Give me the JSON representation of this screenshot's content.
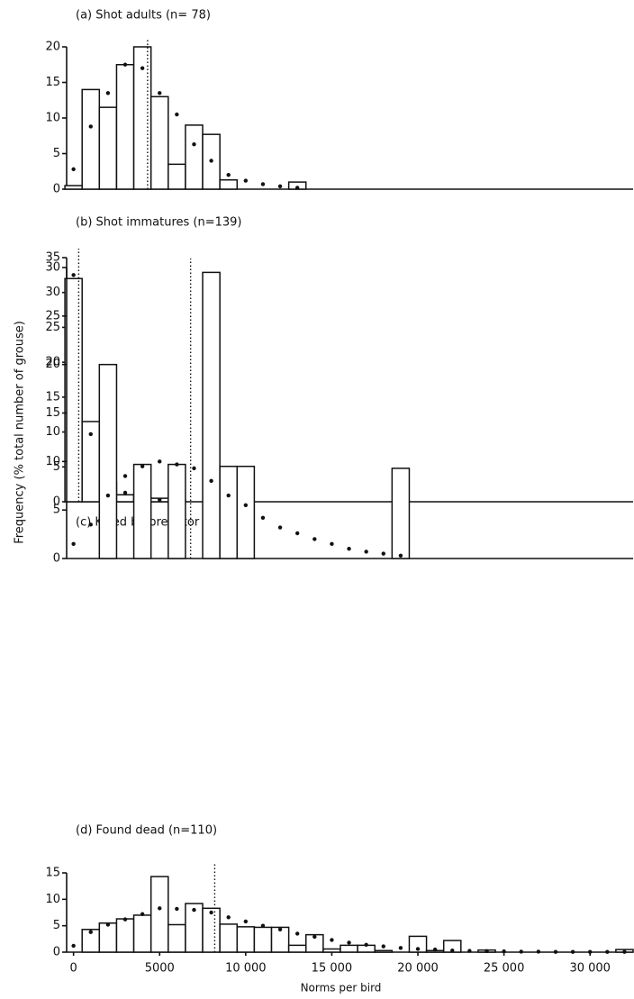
{
  "ylabel": "Frequency (% total number of grouse)",
  "chart_data": [
    {
      "type": "histogram",
      "title": "(a) Shot adults (n= 78)",
      "bins": [
        -500,
        500,
        1500,
        2500,
        3500,
        4500,
        5500,
        6500,
        7500,
        8500,
        9500,
        10500,
        11500,
        12500,
        13500
      ],
      "values": [
        0.5,
        14,
        11.5,
        17.5,
        20,
        13,
        3.5,
        9,
        7.7,
        1.3,
        0,
        0,
        0,
        1
      ],
      "fit": {
        "x": [
          0,
          1000,
          2000,
          3000,
          4000,
          5000,
          6000,
          7000,
          8000,
          9000,
          10000,
          11000,
          12000,
          13000
        ],
        "values": [
          2.8,
          8.8,
          13.5,
          17.5,
          17,
          13.5,
          10.5,
          6.3,
          4,
          2,
          1.2,
          0.7,
          0.4,
          0.2
        ]
      },
      "mean": 4300,
      "xlim": [
        -400,
        32500
      ],
      "ylim": [
        0,
        20
      ],
      "yticks": [
        0,
        5,
        10,
        15,
        20
      ]
    },
    {
      "type": "histogram",
      "title": "(b) Shot immatures (n=139)",
      "bins": [
        -500,
        500,
        1500,
        2500,
        3500,
        4500,
        5500,
        6500
      ],
      "values": [
        32,
        11.5,
        2.8,
        1,
        0.8,
        0.5,
        0.2
      ],
      "fit": {
        "x": [
          0,
          1000,
          2000,
          3000,
          4000,
          5000,
          6000
        ],
        "values": [
          32.5,
          9.7,
          3.7,
          1.3,
          0.6,
          0.3,
          0.1
        ]
      },
      "mean": 300,
      "xlim": [
        -400,
        32500
      ],
      "ylim": [
        0,
        35
      ],
      "yticks": [
        0,
        5,
        10,
        15,
        20,
        25,
        30,
        35
      ]
    },
    {
      "type": "histogram",
      "title": "(c) Killed by predator (n=10)",
      "bins": [
        -500,
        500,
        1500,
        2500,
        3500,
        4500,
        5500,
        6500,
        7500,
        8500,
        9500,
        10500,
        11500,
        12500,
        13500,
        14500,
        15500,
        16500,
        17500,
        18500,
        19500
      ],
      "values": [
        0,
        0,
        20,
        0,
        9.7,
        0,
        9.7,
        0,
        29.5,
        9.5,
        9.5,
        0,
        0,
        0,
        0,
        0,
        0,
        0,
        0,
        9.3
      ],
      "fit": {
        "x": [
          0,
          1000,
          2000,
          3000,
          4000,
          5000,
          6000,
          7000,
          8000,
          9000,
          10000,
          11000,
          12000,
          13000,
          14000,
          15000,
          16000,
          17000,
          18000,
          19000
        ],
        "values": [
          1.5,
          3.5,
          6.5,
          8.5,
          9.5,
          10,
          9.7,
          9.3,
          8,
          6.5,
          5.5,
          4.2,
          3.2,
          2.6,
          2,
          1.5,
          1,
          0.7,
          0.5,
          0.3
        ]
      },
      "mean": 6800,
      "xlim": [
        -400,
        32500
      ],
      "ylim": [
        0,
        30
      ],
      "yticks": [
        0,
        5,
        10,
        15,
        20,
        25,
        30
      ]
    },
    {
      "type": "histogram",
      "title": "(d) Found dead (n=110)",
      "bins": [
        -500,
        500,
        1500,
        2500,
        3500,
        4500,
        5500,
        6500,
        7500,
        8500,
        9500,
        10500,
        11500,
        12500,
        13500,
        14500,
        15500,
        16500,
        17500,
        18500,
        19500,
        20500,
        21500,
        22500,
        23500,
        24500,
        25500,
        26500,
        27500,
        28500,
        29500,
        30500,
        31500,
        32500
      ],
      "values": [
        0,
        4.3,
        5.5,
        6.3,
        7,
        14.3,
        5.2,
        9.2,
        8.3,
        5.3,
        4.8,
        4.7,
        4.7,
        1.3,
        3.3,
        0.6,
        1.3,
        1.3,
        0.3,
        0,
        3,
        0.3,
        2.2,
        0,
        0.4,
        0,
        0,
        0,
        0,
        0,
        0,
        0,
        0.5
      ],
      "fit": {
        "x": [
          0,
          1000,
          2000,
          3000,
          4000,
          5000,
          6000,
          7000,
          8000,
          9000,
          10000,
          11000,
          12000,
          13000,
          14000,
          15000,
          16000,
          17000,
          18000,
          19000,
          20000,
          21000,
          22000,
          23000,
          24000,
          25000,
          26000,
          27000,
          28000,
          29000,
          30000,
          31000,
          32000
        ],
        "values": [
          1.2,
          3.8,
          5.2,
          6.2,
          7.2,
          8.3,
          8.2,
          8,
          7.5,
          6.6,
          5.8,
          5,
          4.3,
          3.5,
          2.9,
          2.3,
          1.8,
          1.4,
          1.1,
          0.8,
          0.6,
          0.5,
          0.3,
          0.25,
          0.2,
          0.15,
          0.1,
          0.1,
          0.05,
          0.05,
          0.05,
          0.05,
          0.05
        ]
      },
      "mean": 8200,
      "xlim": [
        -400,
        32500
      ],
      "ylim": [
        0,
        15
      ],
      "yticks": [
        0,
        5,
        10,
        15
      ],
      "xticks": [
        0,
        5000,
        {
          "value": 10000,
          "label": "10 000"
        },
        {
          "value": 15000,
          "label": "15 000"
        },
        {
          "value": 20000,
          "label": "20 000"
        },
        {
          "value": 25000,
          "label": "25 000"
        },
        {
          "value": 30000,
          "label": "30 000"
        }
      ],
      "xlabel": "Norms per bird"
    }
  ]
}
